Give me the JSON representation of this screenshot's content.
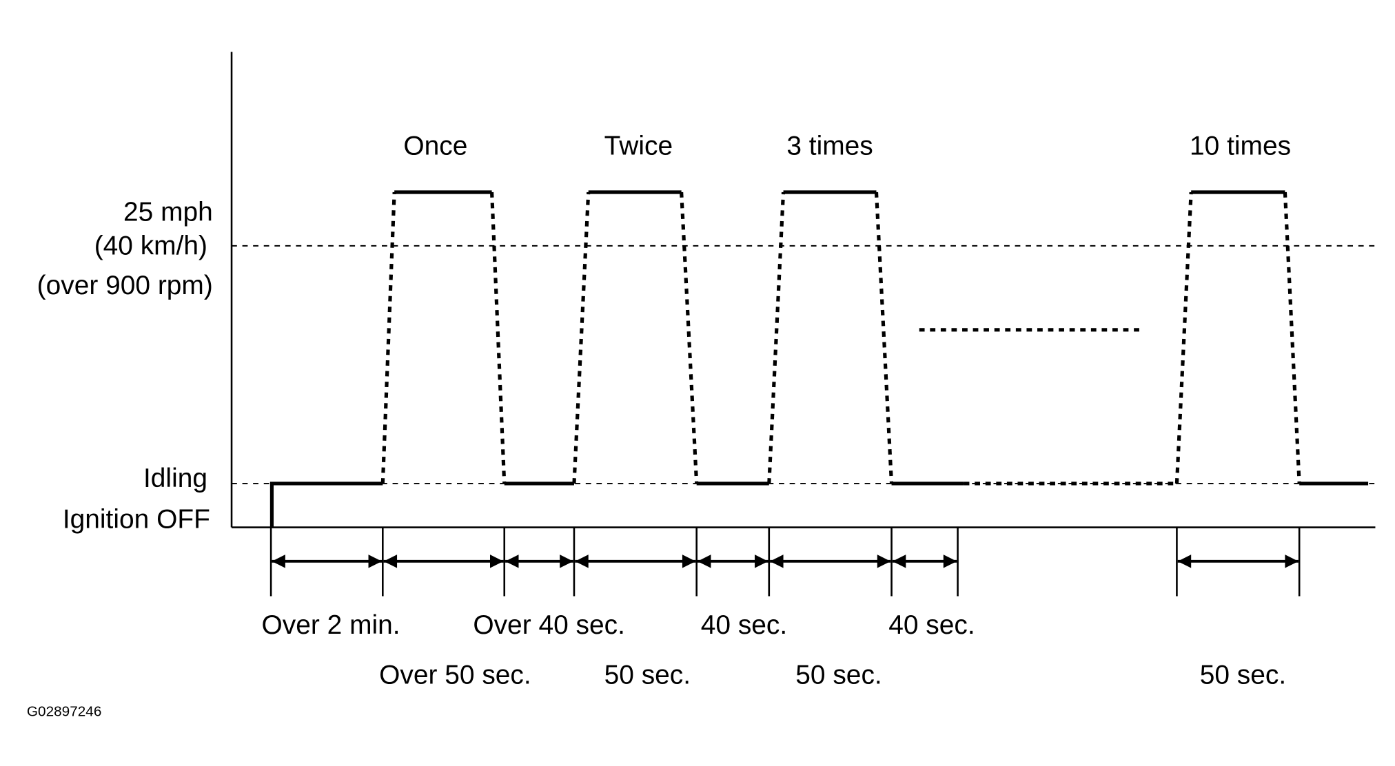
{
  "y_labels": {
    "high": [
      "25 mph",
      "(40 km/h)",
      "(over 900 rpm)"
    ],
    "idle": "Idling",
    "off": "Ignition OFF"
  },
  "cycle_labels": [
    "Once",
    "Twice",
    "3 times",
    "10 times"
  ],
  "durations_row1": [
    "Over 2 min.",
    "Over 40 sec.",
    "40 sec.",
    "40 sec."
  ],
  "durations_row2": [
    "Over 50 sec.",
    "50 sec.",
    "50 sec.",
    "50 sec."
  ],
  "figure_id": "G02897246"
}
